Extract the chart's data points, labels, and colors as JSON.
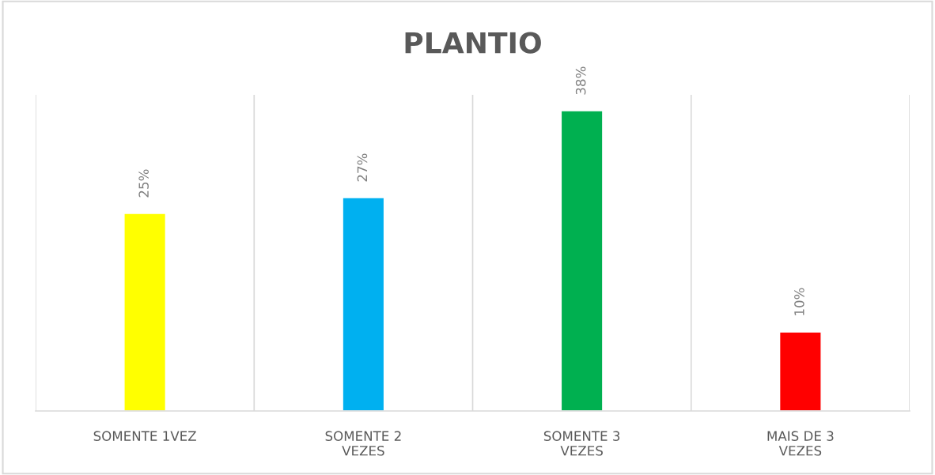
{
  "chart_data": {
    "type": "bar",
    "title": "PLANTIO",
    "categories": [
      "SOMENTE 1VEZ",
      "SOMENTE 2 VEZES",
      "SOMENTE 3 VEZES",
      "MAIS DE 3 VEZES"
    ],
    "values": [
      25,
      27,
      38,
      10
    ],
    "value_labels": [
      "25%",
      "27%",
      "38%",
      "10%"
    ],
    "colors": [
      "#ffff00",
      "#00b0f0",
      "#00b050",
      "#ff0000"
    ],
    "grid": "x",
    "legend": false
  }
}
